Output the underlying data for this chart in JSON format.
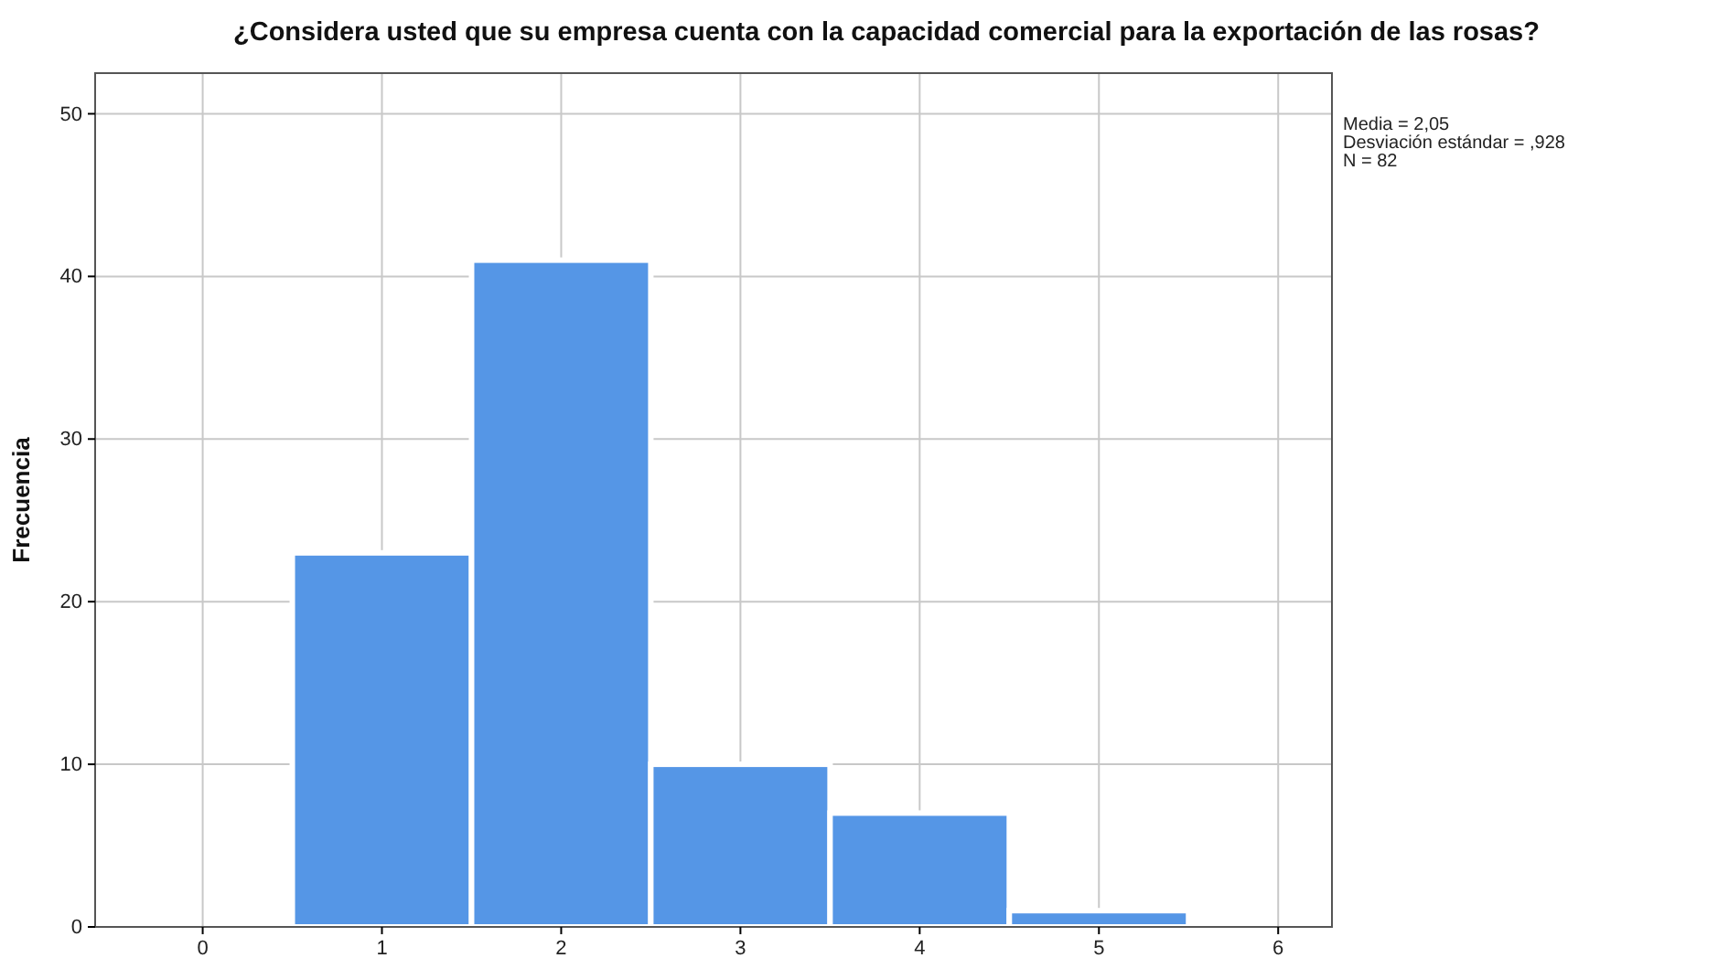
{
  "chart_data": {
    "type": "histogram",
    "title": "¿Considera usted que su empresa cuenta con la capacidad comercial para la exportación de las rosas?",
    "ylabel": "Frecuencia",
    "bins": [
      0.5,
      1.5,
      2.5,
      3.5,
      4.5,
      5.5
    ],
    "values": [
      23,
      41,
      10,
      7,
      1
    ],
    "color": "#5596e6",
    "xlim": [
      -0.6,
      6.3
    ],
    "xticks": [
      0,
      1,
      2,
      3,
      4,
      5,
      6
    ],
    "ylim": [
      0,
      52.5
    ],
    "yticks": [
      0,
      10,
      20,
      30,
      40,
      50
    ],
    "grid": true,
    "annotations": [
      "Media = 2,05",
      "Desviación estándar = ,928",
      "N = 82"
    ]
  }
}
